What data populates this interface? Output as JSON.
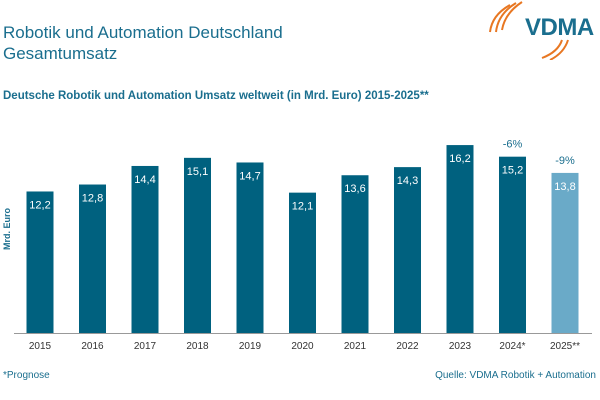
{
  "header": {
    "title_line1": "Robotik und Automation Deutschland",
    "title_line2": "Gesamtumsatz",
    "logo_text": "VDMA"
  },
  "footer": {
    "note": "*Prognose",
    "source": "Quelle: VDMA Robotik + Automation"
  },
  "colors": {
    "bar": "#00617f",
    "forecast_bar": "#6aaac8",
    "text": "#1a6e8e",
    "logo_arcs": "#e87722"
  },
  "chart_data": {
    "type": "bar",
    "title": "Deutsche Robotik und Automation Umsatz weltweit (in Mrd. Euro) 2015-2025**",
    "ylabel": "Mrd. Euro",
    "ylim": [
      0,
      17
    ],
    "grid": false,
    "categories": [
      "2015",
      "2016",
      "2017",
      "2018",
      "2019",
      "2020",
      "2021",
      "2022",
      "2023",
      "2024*",
      "2025**"
    ],
    "values": [
      12.2,
      12.8,
      14.4,
      15.1,
      14.7,
      12.1,
      13.6,
      14.3,
      16.2,
      15.2,
      13.8
    ],
    "value_labels": [
      "12,2",
      "12,8",
      "14,4",
      "15,1",
      "14,7",
      "12,1",
      "13,6",
      "14,3",
      "16,2",
      "15,2",
      "13,8"
    ],
    "annotations": [
      {
        "category": "2024*",
        "text": "-6%"
      },
      {
        "category": "2025**",
        "text": "-9%"
      }
    ],
    "forecast_categories": [
      "2025**"
    ]
  }
}
